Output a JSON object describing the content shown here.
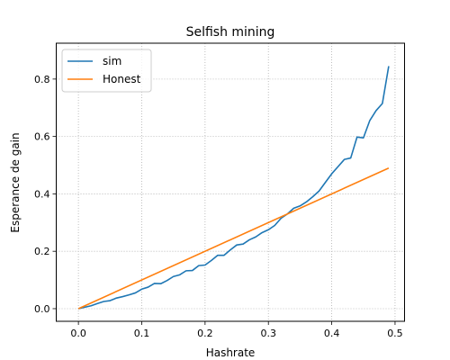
{
  "chart_data": {
    "type": "line",
    "title": "Selfish mining",
    "xlabel": "Hashrate",
    "ylabel": "Esperance de gain",
    "xlim": [
      -0.035,
      0.515
    ],
    "ylim": [
      -0.044,
      0.925
    ],
    "xticks": [
      0.0,
      0.1,
      0.2,
      0.3,
      0.4,
      0.5
    ],
    "xtick_labels": [
      "0.0",
      "0.1",
      "0.2",
      "0.3",
      "0.4",
      "0.5"
    ],
    "yticks": [
      0.0,
      0.2,
      0.4,
      0.6,
      0.8
    ],
    "ytick_labels": [
      "0.0",
      "0.2",
      "0.4",
      "0.6",
      "0.8"
    ],
    "grid": true,
    "legend_position": "top-left",
    "series": [
      {
        "name": "sim",
        "color": "#1f77b4",
        "x": [
          0.0,
          0.01,
          0.02,
          0.03,
          0.04,
          0.05,
          0.06,
          0.07,
          0.08,
          0.09,
          0.1,
          0.11,
          0.12,
          0.13,
          0.14,
          0.15,
          0.16,
          0.17,
          0.18,
          0.19,
          0.2,
          0.21,
          0.22,
          0.23,
          0.24,
          0.25,
          0.26,
          0.27,
          0.28,
          0.29,
          0.3,
          0.31,
          0.32,
          0.33,
          0.34,
          0.35,
          0.36,
          0.37,
          0.38,
          0.39,
          0.4,
          0.41,
          0.42,
          0.43,
          0.44,
          0.45,
          0.46,
          0.47,
          0.48,
          0.49
        ],
        "y": [
          0.0,
          0.005,
          0.01,
          0.018,
          0.025,
          0.028,
          0.037,
          0.042,
          0.048,
          0.055,
          0.068,
          0.075,
          0.088,
          0.087,
          0.098,
          0.112,
          0.118,
          0.132,
          0.133,
          0.15,
          0.152,
          0.168,
          0.186,
          0.186,
          0.205,
          0.222,
          0.225,
          0.24,
          0.25,
          0.265,
          0.275,
          0.29,
          0.315,
          0.33,
          0.35,
          0.358,
          0.372,
          0.39,
          0.41,
          0.44,
          0.47,
          0.495,
          0.52,
          0.525,
          0.598,
          0.595,
          0.655,
          0.69,
          0.715,
          0.845
        ]
      },
      {
        "name": "Honest",
        "color": "#ff7f0e",
        "x": [
          0.0,
          0.49
        ],
        "y": [
          0.0,
          0.49
        ]
      }
    ]
  }
}
